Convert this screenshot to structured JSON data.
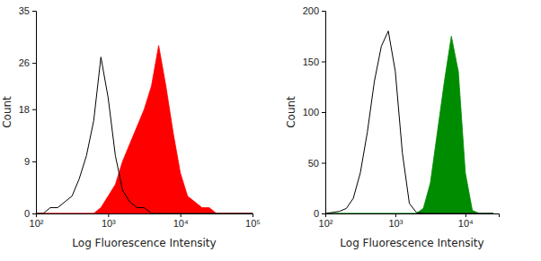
{
  "chart_data": [
    {
      "type": "area",
      "log": "x",
      "x_label": "Log Fluorescence Intensity",
      "y_label": "Count",
      "x": [
        100,
        126,
        158,
        200,
        251,
        316,
        398,
        501,
        631,
        794,
        1000,
        1259,
        1585,
        1995,
        2512,
        3162,
        3981,
        5012,
        6310,
        7943,
        10000,
        12589,
        15849,
        19953,
        25119,
        31623,
        39811,
        50119,
        63096,
        79433,
        100000
      ],
      "xlim": [
        100,
        100000
      ],
      "xticks": [
        {
          "value": 100,
          "label": "10²"
        },
        {
          "value": 1000,
          "label": "10³"
        },
        {
          "value": 10000,
          "label": "10⁴"
        },
        {
          "value": 100000,
          "label": "10⁵"
        }
      ],
      "ylim": [
        0,
        35
      ],
      "yticks": [
        0,
        9,
        18,
        26,
        35
      ],
      "series": [
        {
          "type": "area",
          "color": "#ff0000",
          "values": [
            0,
            0,
            0,
            0,
            0,
            0,
            0,
            0,
            0,
            1,
            3,
            5,
            9,
            12,
            15,
            18,
            22,
            29,
            22,
            14,
            7,
            3,
            2,
            1,
            1,
            0,
            0,
            0,
            0,
            0,
            0
          ]
        },
        {
          "type": "line",
          "color": "#000000",
          "values": [
            0,
            0,
            1,
            1,
            2,
            3,
            6,
            10,
            16,
            27,
            20,
            10,
            4,
            2,
            1,
            1,
            0,
            0,
            0,
            0,
            0,
            0,
            0,
            0,
            0,
            0,
            0,
            0,
            0,
            0,
            0
          ]
        }
      ]
    },
    {
      "type": "area",
      "log": "x",
      "x_label": "Log Fluorescence Intensity",
      "y_label": "Count",
      "x": [
        100,
        126,
        158,
        200,
        251,
        316,
        398,
        501,
        631,
        794,
        1000,
        1259,
        1585,
        1995,
        2512,
        3162,
        3981,
        5012,
        6310,
        7943,
        10000,
        12589,
        15849,
        19953,
        25119
      ],
      "xlim": [
        100,
        30000
      ],
      "xticks": [
        {
          "value": 100,
          "label": "10²"
        },
        {
          "value": 1000,
          "label": "10³"
        },
        {
          "value": 10000,
          "label": "10⁴"
        }
      ],
      "ylim": [
        0,
        200
      ],
      "yticks": [
        0,
        50,
        100,
        150,
        200
      ],
      "series": [
        {
          "type": "area",
          "color": "#008c00",
          "values": [
            0,
            0,
            0,
            0,
            0,
            0,
            0,
            0,
            0,
            0,
            0,
            0,
            0,
            0,
            5,
            30,
            80,
            130,
            175,
            140,
            40,
            3,
            0,
            0,
            0
          ]
        },
        {
          "type": "line",
          "color": "#000000",
          "values": [
            0,
            1,
            2,
            5,
            15,
            40,
            80,
            130,
            165,
            180,
            140,
            60,
            10,
            1,
            0,
            0,
            0,
            0,
            0,
            0,
            0,
            0,
            0,
            0,
            0
          ]
        }
      ]
    }
  ]
}
